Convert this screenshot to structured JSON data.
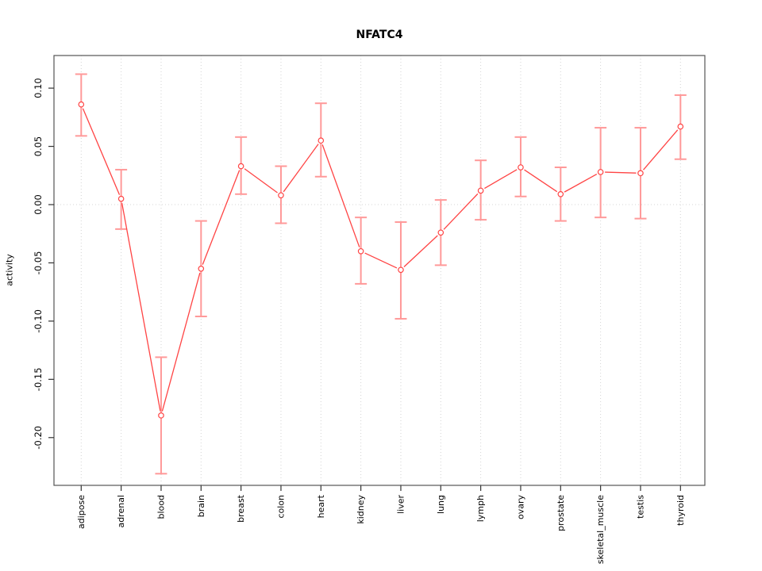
{
  "chart_data": {
    "type": "line",
    "title": "NFATC4",
    "xlabel": "",
    "ylabel": "activity",
    "categories": [
      "adipose",
      "adrenal",
      "blood",
      "brain",
      "breast",
      "colon",
      "heart",
      "kidney",
      "liver",
      "lung",
      "lymph",
      "ovary",
      "prostate",
      "skeletal_muscle",
      "testis",
      "thyroid"
    ],
    "series": [
      {
        "name": "activity",
        "values": [
          0.086,
          0.005,
          -0.181,
          -0.055,
          0.033,
          0.008,
          0.055,
          -0.04,
          -0.056,
          -0.024,
          0.012,
          0.032,
          0.009,
          0.028,
          0.027,
          0.067
        ],
        "lower": [
          0.059,
          -0.021,
          -0.231,
          -0.096,
          0.009,
          -0.016,
          0.024,
          -0.068,
          -0.098,
          -0.052,
          -0.013,
          0.007,
          -0.014,
          -0.011,
          -0.012,
          0.039
        ],
        "upper": [
          0.112,
          0.03,
          -0.131,
          -0.014,
          0.058,
          0.033,
          0.087,
          -0.011,
          -0.015,
          0.004,
          0.038,
          0.058,
          0.032,
          0.066,
          0.066,
          0.094
        ]
      }
    ],
    "ytick_labels": [
      "0.10",
      "0.05",
      "0.00",
      "-0.05",
      "-0.10",
      "-0.15",
      "-0.20"
    ],
    "ylim": [
      -0.241,
      0.128
    ],
    "grid": "dotted vertical line per category, dotted horizontal line at 0",
    "legend": "none",
    "colors": {
      "line": "#ff4444",
      "marker_stroke": "#ff4444",
      "marker_fill": "#ffffff",
      "whisker": "#ff9999",
      "grid": "#d4d4d4",
      "frame": "#555555",
      "tick": "#333333",
      "text": "#000000"
    }
  }
}
